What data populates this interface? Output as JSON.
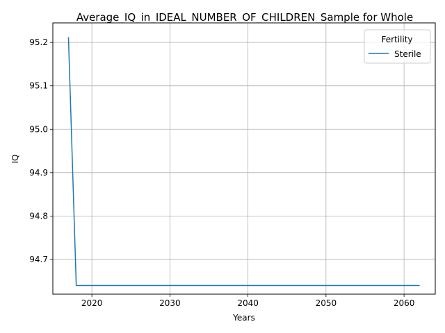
{
  "chart_data": {
    "type": "line",
    "title": "Average_IQ_in_IDEAL_NUMBER_OF_CHILDREN_Sample for Whole",
    "xlabel": "Years",
    "ylabel": "IQ",
    "xlim": [
      2015,
      2064
    ],
    "ylim": [
      94.62,
      95.245
    ],
    "xticks": [
      2020,
      2030,
      2040,
      2050,
      2060
    ],
    "yticks": [
      94.7,
      94.8,
      94.9,
      95.0,
      95.1,
      95.2
    ],
    "xtick_labels": [
      "2020",
      "2030",
      "2040",
      "2050",
      "2060"
    ],
    "ytick_labels": [
      "94.7",
      "94.8",
      "94.9",
      "95.0",
      "95.1",
      "95.2"
    ],
    "grid": true,
    "legend": {
      "title": "Fertility",
      "placement": "upper right"
    },
    "series": [
      {
        "name": "Sterile",
        "color": "#1f77b4",
        "x": [
          2017,
          2018,
          2019,
          2020,
          2021,
          2022,
          2023,
          2024,
          2025,
          2026,
          2027,
          2028,
          2029,
          2030,
          2031,
          2032,
          2033,
          2034,
          2035,
          2036,
          2037,
          2038,
          2039,
          2040,
          2041,
          2042,
          2043,
          2044,
          2045,
          2046,
          2047,
          2048,
          2049,
          2050,
          2051,
          2052,
          2053,
          2054,
          2055,
          2056,
          2057,
          2058,
          2059,
          2060,
          2061,
          2062
        ],
        "y": [
          95.212,
          94.64,
          94.64,
          94.64,
          94.64,
          94.64,
          94.64,
          94.64,
          94.64,
          94.64,
          94.64,
          94.64,
          94.64,
          94.64,
          94.64,
          94.64,
          94.64,
          94.64,
          94.64,
          94.64,
          94.64,
          94.64,
          94.64,
          94.64,
          94.64,
          94.64,
          94.64,
          94.64,
          94.64,
          94.64,
          94.64,
          94.64,
          94.64,
          94.64,
          94.64,
          94.64,
          94.64,
          94.64,
          94.64,
          94.64,
          94.64,
          94.64,
          94.64,
          94.64,
          94.64,
          94.64
        ]
      }
    ]
  }
}
